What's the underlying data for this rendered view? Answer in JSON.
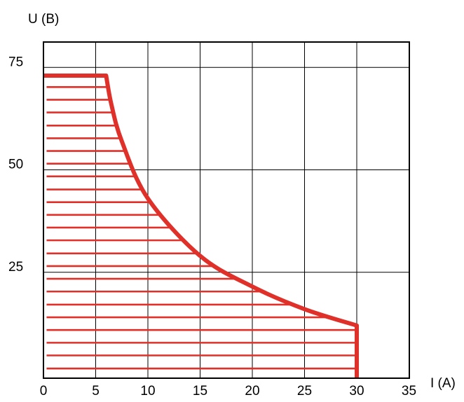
{
  "chart_data": {
    "type": "area",
    "title": "",
    "xlabel": "I (A)",
    "ylabel": "U (B)",
    "xlim": [
      0,
      35
    ],
    "ylim": [
      0,
      75
    ],
    "xticks": [
      "0",
      "5",
      "10",
      "15",
      "20",
      "25",
      "30",
      "35"
    ],
    "yticks": [
      "25",
      "50",
      "75"
    ],
    "grid": true,
    "colors": {
      "curve": "#e0302a",
      "grid": "#000000"
    },
    "series": [
      {
        "values": [
          [
            0,
            73
          ],
          [
            6,
            73
          ],
          [
            6.5,
            66
          ],
          [
            7.5,
            57
          ],
          [
            10,
            43
          ],
          [
            15,
            29
          ],
          [
            20,
            21.5
          ],
          [
            25,
            16
          ],
          [
            30,
            12
          ],
          [
            30,
            0
          ]
        ]
      }
    ],
    "hatch_levels": [
      1.5,
      4.7,
      7.8,
      10.9,
      14.0,
      17.1,
      20.3,
      23.4,
      26.5,
      29.6,
      32.8,
      35.9,
      39.0,
      42.1,
      45.2,
      48.4,
      51.5,
      54.6,
      57.7,
      60.8,
      64.0,
      67.1,
      70.2
    ]
  }
}
